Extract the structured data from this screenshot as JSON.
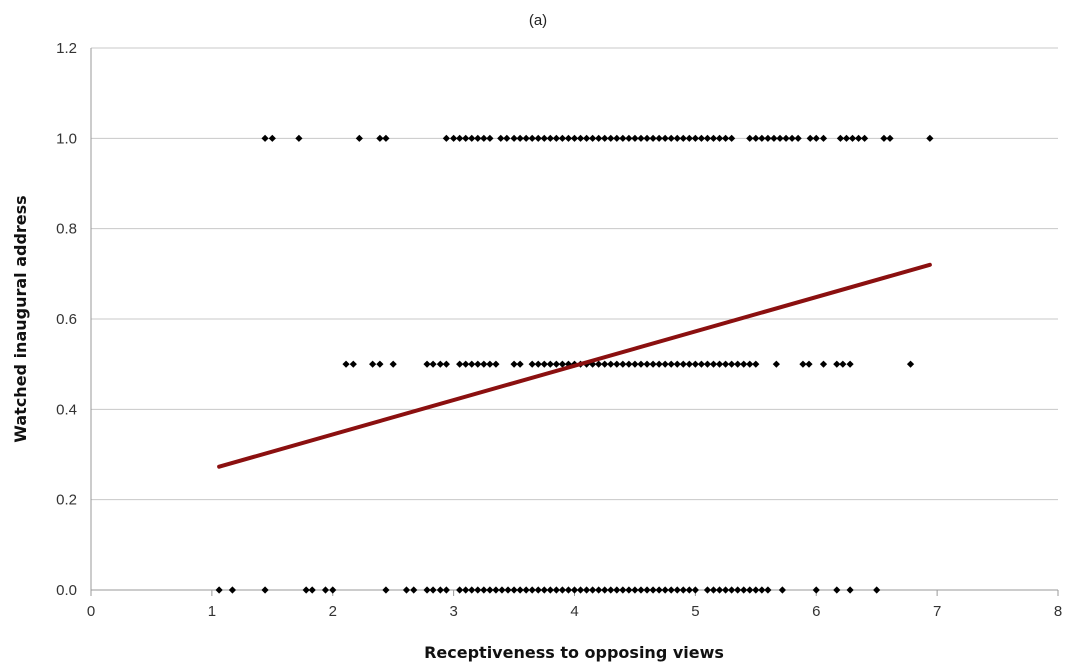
{
  "chart_data": {
    "type": "scatter",
    "title": "(a)",
    "xlabel": "Receptiveness to opposing views",
    "ylabel": "Watched inaugural address",
    "xlim": [
      0,
      8
    ],
    "ylim": [
      0,
      1.2
    ],
    "x_ticks": [
      "0",
      "1",
      "2",
      "3",
      "4",
      "5",
      "6",
      "7",
      "8"
    ],
    "y_ticks": [
      "0.0",
      "0.2",
      "0.4",
      "0.6",
      "0.8",
      "1.0",
      "1.2"
    ],
    "grid": "horizontal",
    "colors": {
      "points": "#000000",
      "trendline": "#8b1010",
      "grid": "#c8c8c8",
      "axis": "#9a9a9a"
    },
    "series": [
      {
        "marker": "diamond",
        "points": [
          [
            1.44,
            1.0
          ],
          [
            1.5,
            1.0
          ],
          [
            1.72,
            1.0
          ],
          [
            2.22,
            1.0
          ],
          [
            2.39,
            1.0
          ],
          [
            2.44,
            1.0
          ],
          [
            2.94,
            1.0
          ],
          [
            3.0,
            1.0
          ],
          [
            3.05,
            1.0
          ],
          [
            3.1,
            1.0
          ],
          [
            3.15,
            1.0
          ],
          [
            3.2,
            1.0
          ],
          [
            3.25,
            1.0
          ],
          [
            3.3,
            1.0
          ],
          [
            3.39,
            1.0
          ],
          [
            3.44,
            1.0
          ],
          [
            3.5,
            1.0
          ],
          [
            3.55,
            1.0
          ],
          [
            3.6,
            1.0
          ],
          [
            3.65,
            1.0
          ],
          [
            3.7,
            1.0
          ],
          [
            3.75,
            1.0
          ],
          [
            3.8,
            1.0
          ],
          [
            3.85,
            1.0
          ],
          [
            3.9,
            1.0
          ],
          [
            3.95,
            1.0
          ],
          [
            4.0,
            1.0
          ],
          [
            4.05,
            1.0
          ],
          [
            4.1,
            1.0
          ],
          [
            4.15,
            1.0
          ],
          [
            4.2,
            1.0
          ],
          [
            4.25,
            1.0
          ],
          [
            4.3,
            1.0
          ],
          [
            4.35,
            1.0
          ],
          [
            4.4,
            1.0
          ],
          [
            4.45,
            1.0
          ],
          [
            4.5,
            1.0
          ],
          [
            4.55,
            1.0
          ],
          [
            4.6,
            1.0
          ],
          [
            4.65,
            1.0
          ],
          [
            4.7,
            1.0
          ],
          [
            4.75,
            1.0
          ],
          [
            4.8,
            1.0
          ],
          [
            4.85,
            1.0
          ],
          [
            4.9,
            1.0
          ],
          [
            4.95,
            1.0
          ],
          [
            5.0,
            1.0
          ],
          [
            5.05,
            1.0
          ],
          [
            5.1,
            1.0
          ],
          [
            5.15,
            1.0
          ],
          [
            5.2,
            1.0
          ],
          [
            5.25,
            1.0
          ],
          [
            5.3,
            1.0
          ],
          [
            5.45,
            1.0
          ],
          [
            5.5,
            1.0
          ],
          [
            5.55,
            1.0
          ],
          [
            5.6,
            1.0
          ],
          [
            5.65,
            1.0
          ],
          [
            5.7,
            1.0
          ],
          [
            5.75,
            1.0
          ],
          [
            5.8,
            1.0
          ],
          [
            5.85,
            1.0
          ],
          [
            5.95,
            1.0
          ],
          [
            6.0,
            1.0
          ],
          [
            6.06,
            1.0
          ],
          [
            6.2,
            1.0
          ],
          [
            6.25,
            1.0
          ],
          [
            6.3,
            1.0
          ],
          [
            6.35,
            1.0
          ],
          [
            6.4,
            1.0
          ],
          [
            6.56,
            1.0
          ],
          [
            6.61,
            1.0
          ],
          [
            6.94,
            1.0
          ],
          [
            2.11,
            0.5
          ],
          [
            2.17,
            0.5
          ],
          [
            2.33,
            0.5
          ],
          [
            2.39,
            0.5
          ],
          [
            2.5,
            0.5
          ],
          [
            2.78,
            0.5
          ],
          [
            2.83,
            0.5
          ],
          [
            2.89,
            0.5
          ],
          [
            2.94,
            0.5
          ],
          [
            3.05,
            0.5
          ],
          [
            3.1,
            0.5
          ],
          [
            3.15,
            0.5
          ],
          [
            3.2,
            0.5
          ],
          [
            3.25,
            0.5
          ],
          [
            3.3,
            0.5
          ],
          [
            3.35,
            0.5
          ],
          [
            3.5,
            0.5
          ],
          [
            3.55,
            0.5
          ],
          [
            3.65,
            0.5
          ],
          [
            3.7,
            0.5
          ],
          [
            3.75,
            0.5
          ],
          [
            3.8,
            0.5
          ],
          [
            3.85,
            0.5
          ],
          [
            3.9,
            0.5
          ],
          [
            3.95,
            0.5
          ],
          [
            4.0,
            0.5
          ],
          [
            4.05,
            0.5
          ],
          [
            4.1,
            0.5
          ],
          [
            4.15,
            0.5
          ],
          [
            4.2,
            0.5
          ],
          [
            4.25,
            0.5
          ],
          [
            4.3,
            0.5
          ],
          [
            4.35,
            0.5
          ],
          [
            4.4,
            0.5
          ],
          [
            4.45,
            0.5
          ],
          [
            4.5,
            0.5
          ],
          [
            4.55,
            0.5
          ],
          [
            4.6,
            0.5
          ],
          [
            4.65,
            0.5
          ],
          [
            4.7,
            0.5
          ],
          [
            4.75,
            0.5
          ],
          [
            4.8,
            0.5
          ],
          [
            4.85,
            0.5
          ],
          [
            4.9,
            0.5
          ],
          [
            4.95,
            0.5
          ],
          [
            5.0,
            0.5
          ],
          [
            5.05,
            0.5
          ],
          [
            5.1,
            0.5
          ],
          [
            5.15,
            0.5
          ],
          [
            5.2,
            0.5
          ],
          [
            5.25,
            0.5
          ],
          [
            5.3,
            0.5
          ],
          [
            5.35,
            0.5
          ],
          [
            5.4,
            0.5
          ],
          [
            5.45,
            0.5
          ],
          [
            5.5,
            0.5
          ],
          [
            5.67,
            0.5
          ],
          [
            5.89,
            0.5
          ],
          [
            5.94,
            0.5
          ],
          [
            6.06,
            0.5
          ],
          [
            6.17,
            0.5
          ],
          [
            6.22,
            0.5
          ],
          [
            6.28,
            0.5
          ],
          [
            6.78,
            0.5
          ],
          [
            1.06,
            0.0
          ],
          [
            1.17,
            0.0
          ],
          [
            1.44,
            0.0
          ],
          [
            1.78,
            0.0
          ],
          [
            1.83,
            0.0
          ],
          [
            1.94,
            0.0
          ],
          [
            2.0,
            0.0
          ],
          [
            2.44,
            0.0
          ],
          [
            2.61,
            0.0
          ],
          [
            2.67,
            0.0
          ],
          [
            2.78,
            0.0
          ],
          [
            2.83,
            0.0
          ],
          [
            2.89,
            0.0
          ],
          [
            2.94,
            0.0
          ],
          [
            3.05,
            0.0
          ],
          [
            3.1,
            0.0
          ],
          [
            3.15,
            0.0
          ],
          [
            3.2,
            0.0
          ],
          [
            3.25,
            0.0
          ],
          [
            3.3,
            0.0
          ],
          [
            3.35,
            0.0
          ],
          [
            3.4,
            0.0
          ],
          [
            3.45,
            0.0
          ],
          [
            3.5,
            0.0
          ],
          [
            3.55,
            0.0
          ],
          [
            3.6,
            0.0
          ],
          [
            3.65,
            0.0
          ],
          [
            3.7,
            0.0
          ],
          [
            3.75,
            0.0
          ],
          [
            3.8,
            0.0
          ],
          [
            3.85,
            0.0
          ],
          [
            3.9,
            0.0
          ],
          [
            3.95,
            0.0
          ],
          [
            4.0,
            0.0
          ],
          [
            4.05,
            0.0
          ],
          [
            4.1,
            0.0
          ],
          [
            4.15,
            0.0
          ],
          [
            4.2,
            0.0
          ],
          [
            4.25,
            0.0
          ],
          [
            4.3,
            0.0
          ],
          [
            4.35,
            0.0
          ],
          [
            4.4,
            0.0
          ],
          [
            4.45,
            0.0
          ],
          [
            4.5,
            0.0
          ],
          [
            4.55,
            0.0
          ],
          [
            4.6,
            0.0
          ],
          [
            4.65,
            0.0
          ],
          [
            4.7,
            0.0
          ],
          [
            4.75,
            0.0
          ],
          [
            4.8,
            0.0
          ],
          [
            4.85,
            0.0
          ],
          [
            4.9,
            0.0
          ],
          [
            4.95,
            0.0
          ],
          [
            5.0,
            0.0
          ],
          [
            5.1,
            0.0
          ],
          [
            5.15,
            0.0
          ],
          [
            5.2,
            0.0
          ],
          [
            5.25,
            0.0
          ],
          [
            5.3,
            0.0
          ],
          [
            5.35,
            0.0
          ],
          [
            5.4,
            0.0
          ],
          [
            5.45,
            0.0
          ],
          [
            5.5,
            0.0
          ],
          [
            5.55,
            0.0
          ],
          [
            5.6,
            0.0
          ],
          [
            5.72,
            0.0
          ],
          [
            6.0,
            0.0
          ],
          [
            6.17,
            0.0
          ],
          [
            6.28,
            0.0
          ],
          [
            6.5,
            0.0
          ]
        ]
      }
    ],
    "trendline": {
      "x": [
        1.06,
        6.94
      ],
      "y": [
        0.273,
        0.72
      ]
    }
  }
}
